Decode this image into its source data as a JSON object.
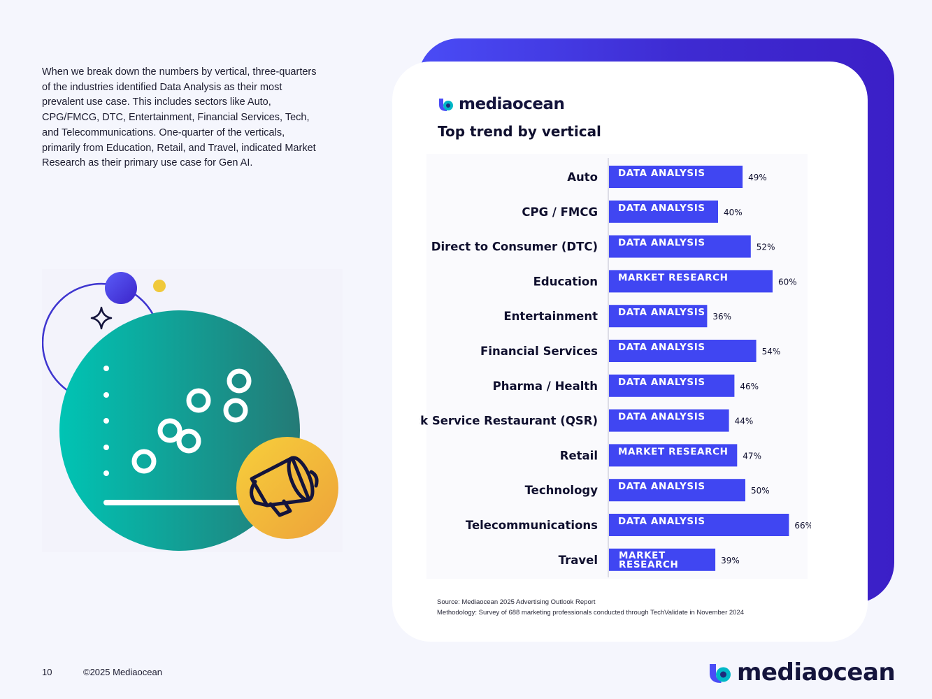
{
  "intro_text": "When we break down the numbers by vertical, three-quarters of the industries identified Data Analysis as their most prevalent use case. This includes sectors like Auto, CPG/FMCG, DTC, Entertainment, Financial Services, Tech, and Telecommunications. One-quarter of the verticals, primarily from Education, Retail, and Travel, indicated Market Research as their primary use case for Gen AI.",
  "brand": {
    "name": "mediaocean",
    "accent": "#4046f2"
  },
  "chart_title": "Top trend by vertical",
  "chart_data": {
    "type": "bar",
    "orientation": "horizontal",
    "title": "Top trend by vertical",
    "categories": [
      "Auto",
      "CPG / FMCG",
      "Direct to Consumer (DTC)",
      "Education",
      "Entertainment",
      "Financial Services",
      "Pharma / Health",
      "Quick Service Restaurant (QSR)",
      "Retail",
      "Technology",
      "Telecommunications",
      "Travel"
    ],
    "values": [
      49,
      40,
      52,
      60,
      36,
      54,
      46,
      44,
      47,
      50,
      66,
      39
    ],
    "value_labels": [
      "49%",
      "40%",
      "52%",
      "60%",
      "36%",
      "54%",
      "46%",
      "44%",
      "47%",
      "50%",
      "66%",
      "39%"
    ],
    "bar_labels": [
      "DATA ANALYSIS",
      "DATA ANALYSIS",
      "DATA ANALYSIS",
      "MARKET RESEARCH",
      "DATA ANALYSIS",
      "DATA ANALYSIS",
      "DATA ANALYSIS",
      "DATA ANALYSIS",
      "MARKET RESEARCH",
      "DATA ANALYSIS",
      "DATA ANALYSIS",
      "MARKET RESEARCH"
    ],
    "xlim": [
      0,
      70
    ],
    "unit": "%",
    "bar_color": "#4046f2"
  },
  "source_note": "Source: Mediaocean 2025 Advertising Outlook Report",
  "methodology_note": "Methodology: Survey of 688 marketing professionals conducted through TechValidate in November 2024",
  "footer": {
    "page_number": "10",
    "copyright": "©2025 Mediaocean"
  }
}
